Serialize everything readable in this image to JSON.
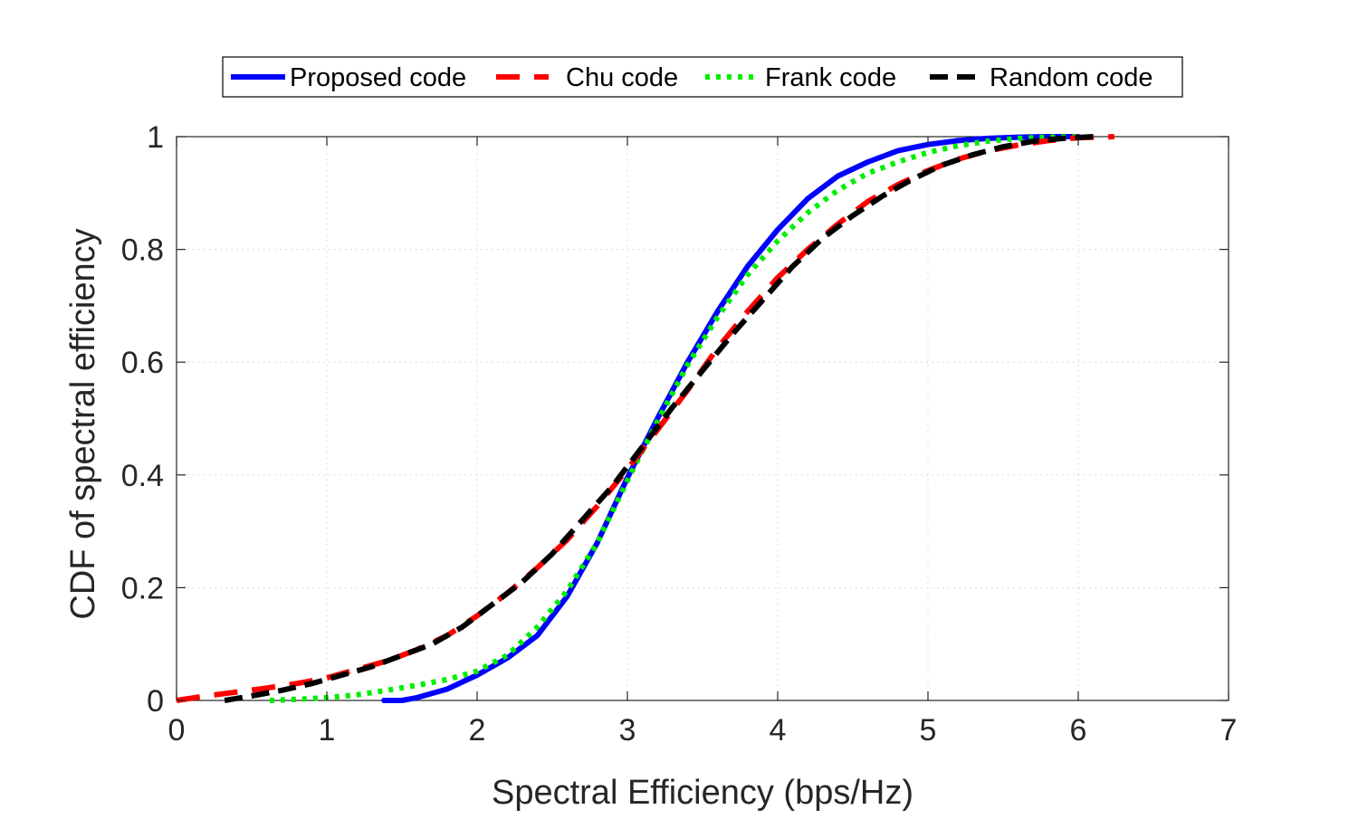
{
  "chart_data": {
    "type": "line",
    "title": "",
    "xlabel": "Spectral Efficiency (bps/Hz)",
    "ylabel": "CDF of spectral efficiency",
    "xlim": [
      0,
      7
    ],
    "ylim": [
      0,
      1
    ],
    "xticks": [
      "0",
      "1",
      "2",
      "3",
      "4",
      "5",
      "6",
      "7"
    ],
    "yticks": [
      "0",
      "0.2",
      "0.4",
      "0.6",
      "0.8",
      "1"
    ],
    "grid": true,
    "legend_position": "top-center",
    "series": [
      {
        "name": "Proposed code",
        "color": "#0000ff",
        "style": "solid",
        "x": [
          1.38,
          1.5,
          1.6,
          1.8,
          2.0,
          2.2,
          2.4,
          2.6,
          2.8,
          3.0,
          3.2,
          3.4,
          3.6,
          3.8,
          4.0,
          4.2,
          4.4,
          4.6,
          4.8,
          5.0,
          5.2,
          5.4,
          5.6,
          5.8,
          6.0
        ],
        "y": [
          0.0,
          0.0,
          0.005,
          0.02,
          0.045,
          0.075,
          0.115,
          0.185,
          0.28,
          0.395,
          0.5,
          0.6,
          0.69,
          0.77,
          0.835,
          0.89,
          0.93,
          0.955,
          0.975,
          0.986,
          0.993,
          0.997,
          0.999,
          1.0,
          1.0
        ]
      },
      {
        "name": "Chu code",
        "color": "#ff0000",
        "style": "dashed",
        "x": [
          0.0,
          0.2,
          0.4,
          0.6,
          0.8,
          1.0,
          1.2,
          1.4,
          1.6,
          1.8,
          2.0,
          2.2,
          2.4,
          2.6,
          2.8,
          3.0,
          3.2,
          3.4,
          3.6,
          3.8,
          4.0,
          4.2,
          4.4,
          4.6,
          4.8,
          5.0,
          5.2,
          5.4,
          5.6,
          5.8,
          6.0,
          6.24
        ],
        "y": [
          0.0,
          0.008,
          0.015,
          0.022,
          0.03,
          0.04,
          0.055,
          0.07,
          0.09,
          0.115,
          0.15,
          0.19,
          0.235,
          0.285,
          0.345,
          0.41,
          0.48,
          0.55,
          0.625,
          0.69,
          0.75,
          0.8,
          0.845,
          0.885,
          0.915,
          0.94,
          0.96,
          0.975,
          0.985,
          0.993,
          0.998,
          1.0
        ]
      },
      {
        "name": "Frank code",
        "color": "#00ee00",
        "style": "dotted",
        "x": [
          0.62,
          0.8,
          1.0,
          1.2,
          1.4,
          1.6,
          1.8,
          2.0,
          2.2,
          2.4,
          2.6,
          2.8,
          3.0,
          3.2,
          3.4,
          3.6,
          3.8,
          4.0,
          4.2,
          4.4,
          4.6,
          4.8,
          5.0,
          5.2,
          5.4,
          5.6,
          5.8,
          6.0
        ],
        "y": [
          0.0,
          0.002,
          0.005,
          0.01,
          0.018,
          0.027,
          0.037,
          0.052,
          0.08,
          0.13,
          0.195,
          0.28,
          0.39,
          0.495,
          0.595,
          0.68,
          0.755,
          0.815,
          0.865,
          0.905,
          0.935,
          0.955,
          0.972,
          0.984,
          0.992,
          0.997,
          0.999,
          1.0
        ]
      },
      {
        "name": "Random code",
        "color": "#000000",
        "style": "dashed",
        "x": [
          0.32,
          0.5,
          0.7,
          0.9,
          1.1,
          1.3,
          1.5,
          1.7,
          1.9,
          2.1,
          2.3,
          2.5,
          2.7,
          2.9,
          3.1,
          3.3,
          3.5,
          3.7,
          3.9,
          4.1,
          4.3,
          4.5,
          4.7,
          4.9,
          5.1,
          5.3,
          5.5,
          5.7,
          5.9,
          6.1
        ],
        "y": [
          0.0,
          0.008,
          0.018,
          0.03,
          0.045,
          0.06,
          0.08,
          0.1,
          0.13,
          0.17,
          0.21,
          0.26,
          0.32,
          0.38,
          0.45,
          0.52,
          0.585,
          0.65,
          0.71,
          0.77,
          0.82,
          0.86,
          0.895,
          0.925,
          0.95,
          0.968,
          0.982,
          0.992,
          0.997,
          1.0
        ]
      }
    ]
  }
}
